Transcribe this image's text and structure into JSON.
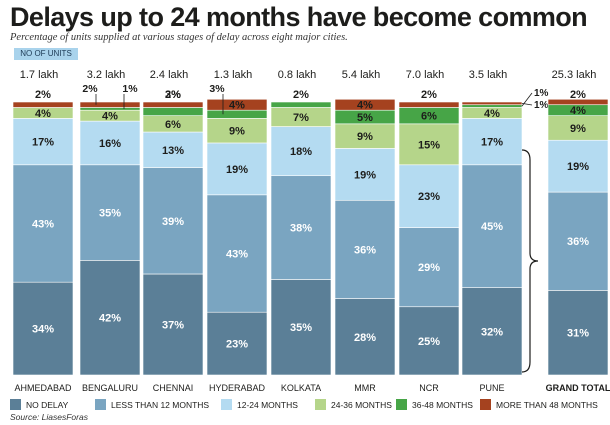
{
  "title": "Delays up to 24 months have become common",
  "subtitle": "Percentage of units supplied at various stages of delay across eight major cities.",
  "units_badge": "NO OF UNITS",
  "source": "Source: LiasesForas",
  "colors": {
    "NO DELAY": "#5b7f97",
    "LESS THAN 12 MONTHS": "#7aa5c1",
    "12-24 MONTHS": "#b4dbf1",
    "24-36 MONTHS": "#b5d58a",
    "36-48 MONTHS": "#47a547",
    "MORE THAN 48 MONTHS": "#a5421f"
  },
  "chart_data": {
    "type": "bar",
    "stacked": true,
    "categories": [
      "AHMEDABAD",
      "BENGALURU",
      "CHENNAI",
      "HYDERABAD",
      "KOLKATA",
      "MMR",
      "NCR",
      "PUNE",
      "GRAND TOTAL"
    ],
    "units": [
      "1.7 lakh",
      "3.2 lakh",
      "2.4 lakh",
      "1.3 lakh",
      "0.8 lakh",
      "5.4 lakh",
      "7.0 lakh",
      "3.5 lakh",
      "25.3 lakh"
    ],
    "series": [
      {
        "name": "NO DELAY",
        "values": [
          34,
          42,
          37,
          23,
          35,
          28,
          25,
          32,
          31
        ]
      },
      {
        "name": "LESS THAN 12 MONTHS",
        "values": [
          43,
          35,
          39,
          43,
          38,
          36,
          29,
          45,
          36
        ]
      },
      {
        "name": "12-24 MONTHS",
        "values": [
          17,
          16,
          13,
          19,
          18,
          19,
          23,
          17,
          19
        ]
      },
      {
        "name": "24-36 MONTHS",
        "values": [
          4,
          4,
          6,
          9,
          7,
          9,
          15,
          4,
          9
        ]
      },
      {
        "name": "36-48 MONTHS",
        "values": [
          0,
          1,
          3,
          3,
          2,
          5,
          6,
          1,
          4
        ]
      },
      {
        "name": "MORE THAN 48 MONTHS",
        "values": [
          2,
          2,
          2,
          4,
          0,
          4,
          2,
          1,
          2
        ]
      }
    ],
    "ylim": [
      0,
      100
    ],
    "legend_position": "bottom"
  }
}
